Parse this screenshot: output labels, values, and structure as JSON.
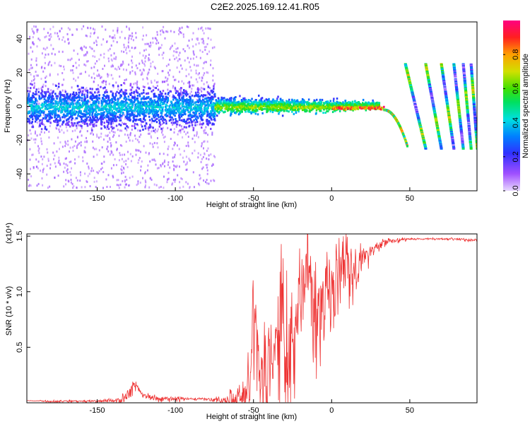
{
  "title": "C2E2.2025.169.12.41.R05",
  "colors": {
    "snr_line": "#ee3333",
    "spectrogram_low": "#8a2be2",
    "colormap": [
      "#ffffff",
      "#e0c0ff",
      "#b070ff",
      "#8000ff",
      "#3030ff",
      "#0080ff",
      "#00d0ff",
      "#00e0a0",
      "#30e030",
      "#c0e000",
      "#ffb000",
      "#ff4000",
      "#ff0060",
      "#ff0080"
    ]
  },
  "chart_data": [
    {
      "type": "heatmap",
      "title": "C2E2.2025.169.12.41.R05",
      "xlabel": "Height of straight line (km)",
      "ylabel": "Frequency (Hz)",
      "xlim": [
        -195,
        93
      ],
      "ylim": [
        -50,
        50
      ],
      "x_ticks": [
        -150,
        -100,
        -50,
        0,
        50
      ],
      "y_ticks": [
        -40,
        -20,
        0,
        20,
        40
      ],
      "grid": false,
      "colorbar": {
        "label": "Normalized spectral amplitude",
        "range": [
          0,
          1
        ],
        "ticks": [
          0.0,
          0.2,
          0.4,
          0.6,
          0.8
        ]
      },
      "features": [
        {
          "name": "",
          "x_range": [
            -195,
            -75
          ],
          "freq_center": 0,
          "freq_spread": 10,
          "amplitude": 0.2,
          "scatter_spread": 48
        },
        {
          "name": "",
          "x_range": [
            -75,
            30
          ],
          "freq_center": 0,
          "freq_spread": 5,
          "amplitude": 0.45
        },
        {
          "name": "",
          "x_range": [
            0,
            33
          ],
          "freq_center": -1,
          "freq_spread": 2,
          "amplitude": 0.9
        },
        {
          "name": "",
          "x_range": [
            33,
            48
          ],
          "freq_start": -2,
          "freq_end": -24,
          "amplitude": 0.7
        },
        {
          "name": "",
          "curves": [
            {
              "x_start": 47,
              "x_end": 60,
              "f_start": 25,
              "f_end": -25
            },
            {
              "x_start": 60,
              "x_end": 70,
              "f_start": 25,
              "f_end": -25
            },
            {
              "x_start": 70,
              "x_end": 78,
              "f_start": 25,
              "f_end": -25
            },
            {
              "x_start": 78,
              "x_end": 84,
              "f_start": 25,
              "f_end": -25
            },
            {
              "x_start": 84,
              "x_end": 89,
              "f_start": 25,
              "f_end": -25
            },
            {
              "x_start": 89,
              "x_end": 93,
              "f_start": 25,
              "f_end": -25
            }
          ],
          "amplitude": 0.6
        }
      ]
    },
    {
      "type": "line",
      "xlabel": "Height of straight line (km)",
      "ylabel": "SNR (10 * v/v)",
      "scale_label": "(x10⁴)",
      "xlim": [
        -195,
        93
      ],
      "ylim": [
        0,
        1.52
      ],
      "x_ticks": [
        -150,
        -100,
        -50,
        0,
        50
      ],
      "y_ticks": [
        0.5,
        1.0,
        1.5
      ],
      "grid": false,
      "series": [
        {
          "name": "",
          "x": [
            -195,
            -180,
            -160,
            -140,
            -135,
            -130,
            -127,
            -120,
            -110,
            -100,
            -90,
            -80,
            -70,
            -62,
            -58,
            -55,
            -52,
            -50,
            -45,
            -40,
            -38,
            -35,
            -32,
            -30,
            -27,
            -25,
            -22,
            -20,
            -17,
            -15,
            -12,
            -10,
            -7,
            -5,
            -2,
            0,
            3,
            5,
            8,
            10,
            13,
            15,
            18,
            20,
            23,
            25,
            30,
            35,
            40,
            45,
            50,
            55,
            60,
            70,
            80,
            93
          ],
          "y": [
            0.02,
            0.02,
            0.02,
            0.03,
            0.06,
            0.12,
            0.2,
            0.08,
            0.05,
            0.05,
            0.04,
            0.04,
            0.04,
            0.1,
            0.2,
            0.3,
            0.35,
            1.06,
            0.4,
            0.65,
            0.45,
            0.9,
            1.2,
            0.9,
            0.85,
            0.8,
            1.1,
            1.3,
            1.45,
            1.5,
            1.1,
            1.0,
            1.1,
            1.15,
            1.2,
            1.25,
            1.28,
            1.32,
            1.35,
            1.52,
            1.25,
            1.3,
            1.35,
            1.4,
            1.36,
            1.42,
            1.44,
            1.47,
            1.47,
            1.48,
            1.48,
            1.48,
            1.48,
            1.48,
            1.48,
            1.47
          ],
          "noise": [
            0.0,
            0.01,
            0.01,
            0.02,
            0.05,
            0.07,
            0.06,
            0.03,
            0.02,
            0.02,
            0.01,
            0.01,
            0.04,
            0.12,
            0.2,
            0.28,
            0.3,
            0.4,
            0.35,
            0.45,
            0.4,
            0.5,
            0.55,
            0.55,
            0.5,
            0.5,
            0.55,
            0.55,
            0.55,
            0.5,
            0.45,
            0.45,
            0.4,
            0.4,
            0.4,
            0.38,
            0.35,
            0.33,
            0.3,
            0.28,
            0.25,
            0.2,
            0.15,
            0.1,
            0.08,
            0.06,
            0.04,
            0.03,
            0.02,
            0.02,
            0.01,
            0.01,
            0.01,
            0.01,
            0.01,
            0.01
          ]
        }
      ]
    }
  ]
}
